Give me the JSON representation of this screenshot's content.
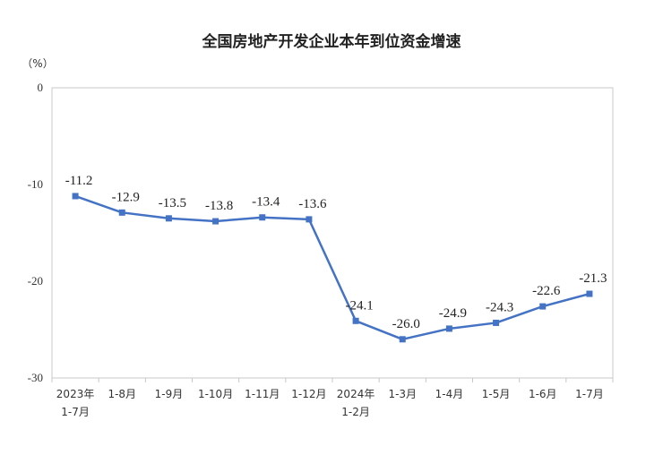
{
  "chart_data": {
    "type": "line",
    "title": "全国房地产开发企业本年到位资金增速",
    "unit_label": "（%）",
    "ylim": [
      -30,
      0
    ],
    "yticks": [
      "0",
      "-10",
      "-20",
      "-30"
    ],
    "grid": false,
    "categories": [
      [
        "2023年",
        "1-7月"
      ],
      [
        "1-8月"
      ],
      [
        "1-9月"
      ],
      [
        "1-10月"
      ],
      [
        "1-11月"
      ],
      [
        "1-12月"
      ],
      [
        "2024年",
        "1-2月"
      ],
      [
        "1-3月"
      ],
      [
        "1-4月"
      ],
      [
        "1-5月"
      ],
      [
        "1-6月"
      ],
      [
        "1-7月"
      ]
    ],
    "series": [
      {
        "values": [
          -11.2,
          -12.9,
          -13.5,
          -13.8,
          -13.4,
          -13.6,
          -24.1,
          -26.0,
          -24.9,
          -24.3,
          -22.6,
          -21.3
        ],
        "labels": [
          "-11.2",
          "-12.9",
          "-13.5",
          "-13.8",
          "-13.4",
          "-13.6",
          "-24.1",
          "-26.0",
          "-24.9",
          "-24.3",
          "-22.6",
          "-21.3"
        ],
        "color": "#4472C4"
      }
    ]
  }
}
